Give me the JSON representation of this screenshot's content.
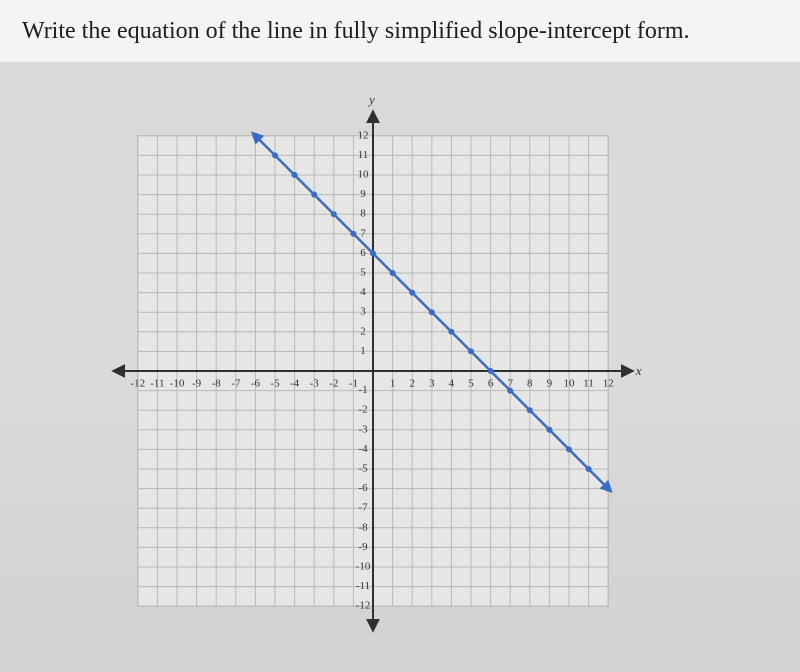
{
  "chart_data": {
    "type": "line",
    "title": "Write the equation of the line in fully simplified slope-intercept form.",
    "xlabel": "x",
    "ylabel": "y",
    "x": [
      -6,
      -5,
      -4,
      -3,
      -2,
      -1,
      0,
      1,
      2,
      3,
      4,
      5,
      6,
      7,
      8,
      9,
      10,
      11,
      12
    ],
    "series": [
      {
        "color": "#3b6cc4",
        "values": [
          12,
          11,
          10,
          9,
          8,
          7,
          6,
          5,
          4,
          3,
          2,
          1,
          0,
          -1,
          -2,
          -3,
          -4,
          -5,
          -6
        ]
      }
    ],
    "xlim": [
      -12,
      12
    ],
    "ylim": [
      -12,
      12
    ],
    "xticks": [
      -12,
      -11,
      -10,
      -9,
      -8,
      -7,
      -6,
      -5,
      -4,
      -3,
      -2,
      -1,
      1,
      2,
      3,
      4,
      5,
      6,
      7,
      8,
      9,
      10,
      11,
      12
    ],
    "yticks": [
      -12,
      -11,
      -10,
      -9,
      -8,
      -7,
      -6,
      -5,
      -4,
      -3,
      -2,
      -1,
      1,
      2,
      3,
      4,
      5,
      6,
      7,
      8,
      9,
      10,
      11,
      12
    ],
    "grid": true
  }
}
